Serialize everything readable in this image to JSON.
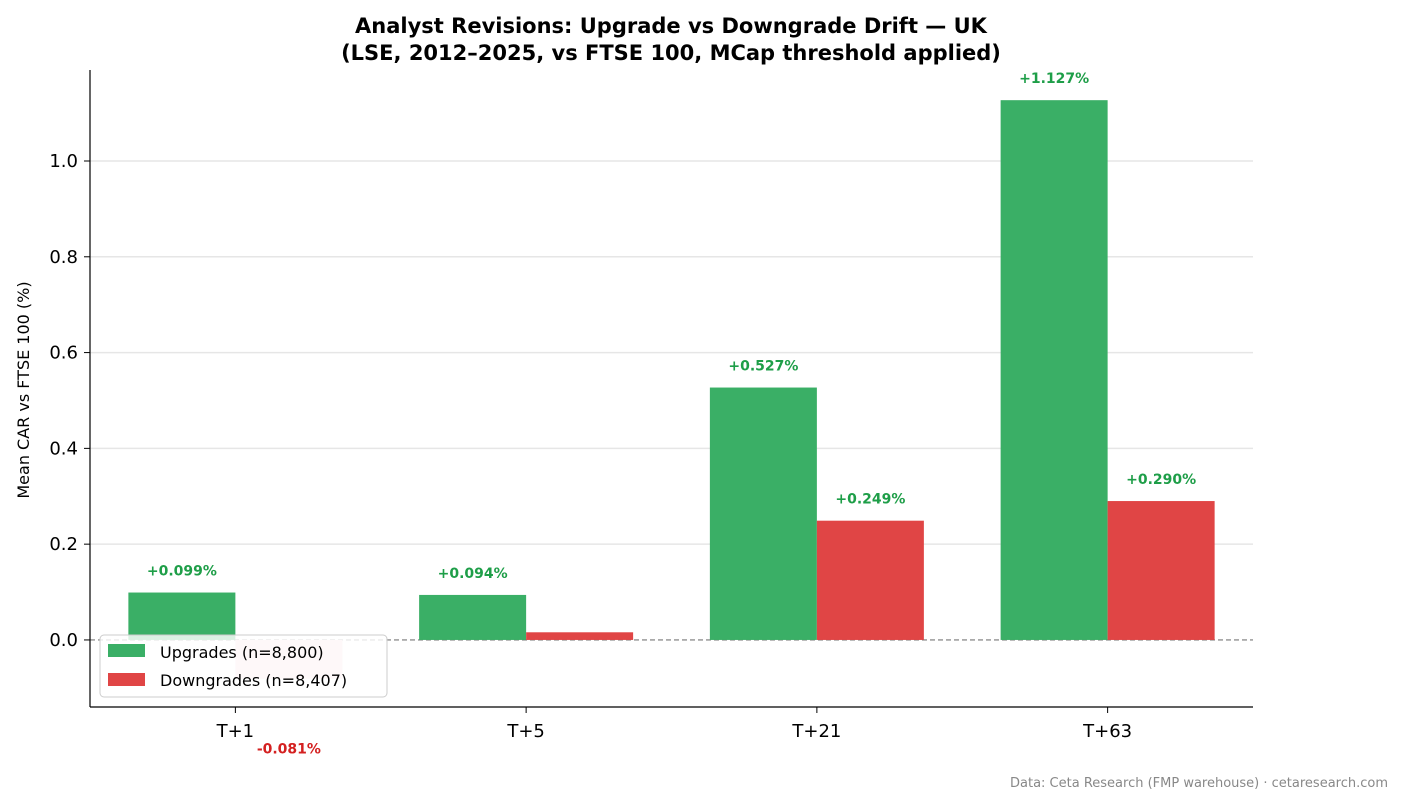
{
  "chart_data": {
    "type": "bar",
    "title": "Analyst Revisions: Upgrade vs Downgrade Drift — UK",
    "subtitle": "(LSE, 2012–2025, vs FTSE 100, MCap threshold applied)",
    "xlabel": "",
    "ylabel": "Mean CAR vs FTSE 100 (%)",
    "categories": [
      "T+1",
      "T+5",
      "T+21",
      "T+63"
    ],
    "ylim": [
      -0.14,
      1.19
    ],
    "yticks": [
      0.0,
      0.2,
      0.4,
      0.6,
      0.8,
      1.0
    ],
    "ytick_labels": [
      "0.0",
      "0.2",
      "0.4",
      "0.6",
      "0.8",
      "1.0"
    ],
    "grid": "horizontal",
    "zero_line": "dashed",
    "legend_position": "bottom-left",
    "series": [
      {
        "name": "Upgrades (n=8,800)",
        "color": "#3aaf66",
        "values": [
          0.099,
          0.094,
          0.527,
          1.127
        ],
        "labels": [
          "+0.099%",
          "+0.094%",
          "+0.527%",
          "+1.127%"
        ],
        "label_color": "#1e9e48"
      },
      {
        "name": "Downgrades (n=8,407)",
        "color": "#e04545",
        "negative_color": "#f8d7da",
        "values": [
          -0.081,
          0.016,
          0.249,
          0.29
        ],
        "labels": [
          "-0.081%",
          "",
          "+0.249%",
          "+0.290%"
        ],
        "label_colors": [
          "#d42020",
          "#1e9e48",
          "#1e9e48",
          "#1e9e48"
        ]
      }
    ]
  },
  "footer": {
    "source": "Data: Ceta Research (FMP warehouse) · cetaresearch.com"
  }
}
